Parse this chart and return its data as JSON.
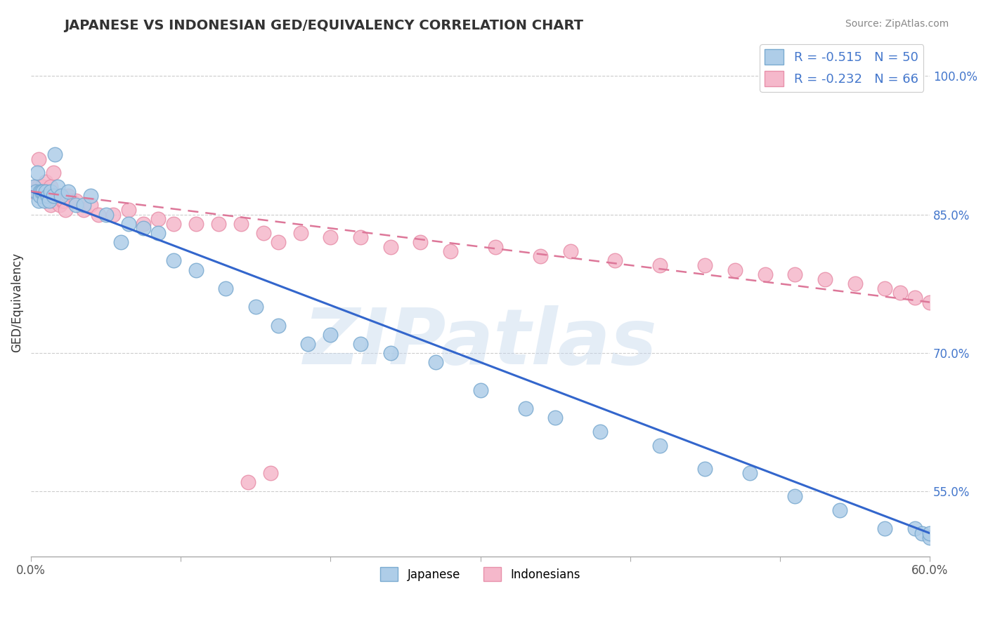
{
  "title": "JAPANESE VS INDONESIAN GED/EQUIVALENCY CORRELATION CHART",
  "source_text": "Source: ZipAtlas.com",
  "ylabel": "GED/Equivalency",
  "xlim": [
    0.0,
    0.6
  ],
  "ylim": [
    0.48,
    1.03
  ],
  "xticks": [
    0.0,
    0.1,
    0.2,
    0.3,
    0.4,
    0.5,
    0.6
  ],
  "xticklabels": [
    "0.0%",
    "",
    "",
    "",
    "",
    "",
    "60.0%"
  ],
  "ytick_positions": [
    0.55,
    0.7,
    0.85,
    1.0
  ],
  "ytick_labels": [
    "55.0%",
    "70.0%",
    "85.0%",
    "100.0%"
  ],
  "japanese_color": "#aecde8",
  "indonesian_color": "#f5b8cb",
  "japanese_edge": "#7aaad0",
  "indonesian_edge": "#e890aa",
  "trend_blue": "#3366cc",
  "trend_pink": "#dd7799",
  "legend_r1": "R = -0.515",
  "legend_n1": "N = 50",
  "legend_r2": "R = -0.232",
  "legend_n2": "N = 66",
  "legend_label1": "Japanese",
  "legend_label2": "Indonesians",
  "watermark": "ZIPatlas",
  "background_color": "#ffffff",
  "grid_color": "#cccccc",
  "title_color": "#333333",
  "japanese_x": [
    0.002,
    0.003,
    0.004,
    0.005,
    0.006,
    0.006,
    0.007,
    0.008,
    0.009,
    0.01,
    0.011,
    0.012,
    0.013,
    0.015,
    0.016,
    0.018,
    0.02,
    0.025,
    0.03,
    0.035,
    0.04,
    0.05,
    0.06,
    0.065,
    0.075,
    0.085,
    0.095,
    0.11,
    0.13,
    0.15,
    0.165,
    0.185,
    0.2,
    0.22,
    0.24,
    0.27,
    0.3,
    0.33,
    0.35,
    0.38,
    0.42,
    0.45,
    0.48,
    0.51,
    0.54,
    0.57,
    0.59,
    0.595,
    0.6,
    0.6
  ],
  "japanese_y": [
    0.88,
    0.875,
    0.895,
    0.865,
    0.875,
    0.87,
    0.875,
    0.875,
    0.865,
    0.875,
    0.87,
    0.865,
    0.875,
    0.87,
    0.915,
    0.88,
    0.87,
    0.875,
    0.86,
    0.86,
    0.87,
    0.85,
    0.82,
    0.84,
    0.835,
    0.83,
    0.8,
    0.79,
    0.77,
    0.75,
    0.73,
    0.71,
    0.72,
    0.71,
    0.7,
    0.69,
    0.66,
    0.64,
    0.63,
    0.615,
    0.6,
    0.575,
    0.57,
    0.545,
    0.53,
    0.51,
    0.51,
    0.505,
    0.5,
    0.505
  ],
  "indonesian_x": [
    0.002,
    0.003,
    0.004,
    0.005,
    0.005,
    0.006,
    0.007,
    0.007,
    0.008,
    0.009,
    0.01,
    0.01,
    0.011,
    0.012,
    0.013,
    0.013,
    0.014,
    0.015,
    0.015,
    0.016,
    0.017,
    0.018,
    0.019,
    0.02,
    0.021,
    0.022,
    0.023,
    0.025,
    0.027,
    0.03,
    0.035,
    0.04,
    0.045,
    0.055,
    0.065,
    0.075,
    0.085,
    0.095,
    0.11,
    0.125,
    0.14,
    0.155,
    0.165,
    0.18,
    0.2,
    0.22,
    0.24,
    0.26,
    0.28,
    0.31,
    0.34,
    0.36,
    0.39,
    0.42,
    0.45,
    0.47,
    0.49,
    0.51,
    0.53,
    0.55,
    0.57,
    0.58,
    0.59,
    0.6,
    0.145,
    0.16
  ],
  "indonesian_y": [
    0.875,
    0.88,
    0.875,
    0.91,
    0.88,
    0.875,
    0.88,
    0.87,
    0.88,
    0.87,
    0.885,
    0.875,
    0.875,
    0.87,
    0.88,
    0.86,
    0.87,
    0.895,
    0.865,
    0.87,
    0.87,
    0.87,
    0.86,
    0.87,
    0.865,
    0.865,
    0.855,
    0.87,
    0.865,
    0.865,
    0.855,
    0.86,
    0.85,
    0.85,
    0.855,
    0.84,
    0.845,
    0.84,
    0.84,
    0.84,
    0.84,
    0.83,
    0.82,
    0.83,
    0.825,
    0.825,
    0.815,
    0.82,
    0.81,
    0.815,
    0.805,
    0.81,
    0.8,
    0.795,
    0.795,
    0.79,
    0.785,
    0.785,
    0.78,
    0.775,
    0.77,
    0.765,
    0.76,
    0.755,
    0.56,
    0.57
  ],
  "jap_trend_x0": 0.0,
  "jap_trend_y0": 0.875,
  "jap_trend_x1": 0.6,
  "jap_trend_y1": 0.505,
  "ind_trend_x0": 0.0,
  "ind_trend_y0": 0.875,
  "ind_trend_x1": 0.6,
  "ind_trend_y1": 0.755
}
